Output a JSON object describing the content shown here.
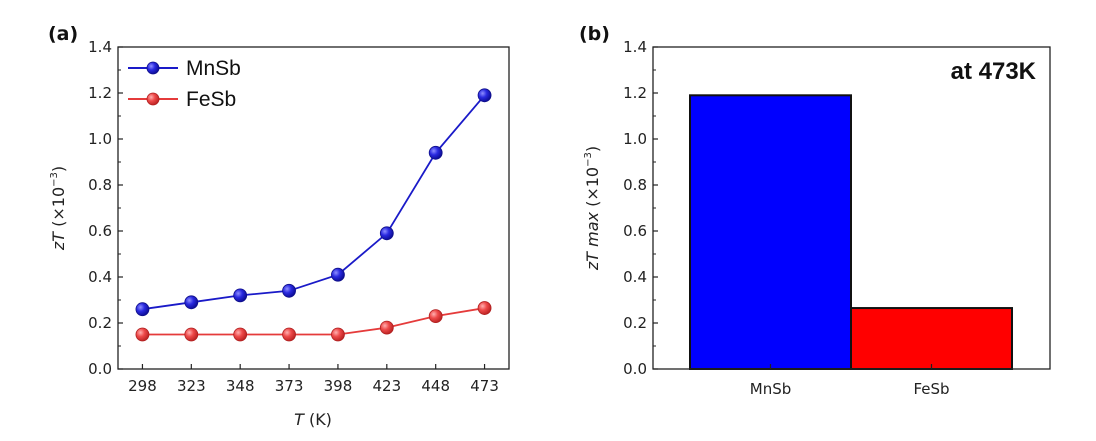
{
  "chart_data": [
    {
      "type": "line",
      "panel_label": "(a)",
      "xlabel": {
        "italic": "T",
        "rest": " (K)"
      },
      "ylabel": {
        "italic": "zT",
        "rest": " (×10",
        "sup": "−3",
        "close": ")"
      },
      "x": [
        298,
        323,
        348,
        373,
        398,
        423,
        448,
        473
      ],
      "xticks": [
        "298",
        "323",
        "348",
        "373",
        "398",
        "423",
        "448",
        "473"
      ],
      "ylim": [
        0.0,
        1.4
      ],
      "yticks": [
        "0.0",
        "0.2",
        "0.4",
        "0.6",
        "0.8",
        "1.0",
        "1.2",
        "1.4"
      ],
      "legend_position": "top-left",
      "series": [
        {
          "name": "MnSb",
          "color": "#1a1ac8",
          "values": [
            0.26,
            0.29,
            0.32,
            0.34,
            0.41,
            0.59,
            0.94,
            1.19
          ]
        },
        {
          "name": "FeSb",
          "color": "#e53b3b",
          "values": [
            0.15,
            0.15,
            0.15,
            0.15,
            0.15,
            0.18,
            0.23,
            0.265
          ]
        }
      ]
    },
    {
      "type": "bar",
      "panel_label": "(b)",
      "annotation": "at 473K",
      "ylabel": {
        "italic": "zT max",
        "rest": " (×10",
        "sup": "−3",
        "close": ")"
      },
      "categories": [
        "MnSb",
        "FeSb"
      ],
      "values": [
        1.19,
        0.265
      ],
      "colors": [
        "#0000ff",
        "#ff0000"
      ],
      "ylim": [
        0.0,
        1.4
      ],
      "yticks": [
        "0.0",
        "0.2",
        "0.4",
        "0.6",
        "0.8",
        "1.0",
        "1.2",
        "1.4"
      ]
    }
  ]
}
